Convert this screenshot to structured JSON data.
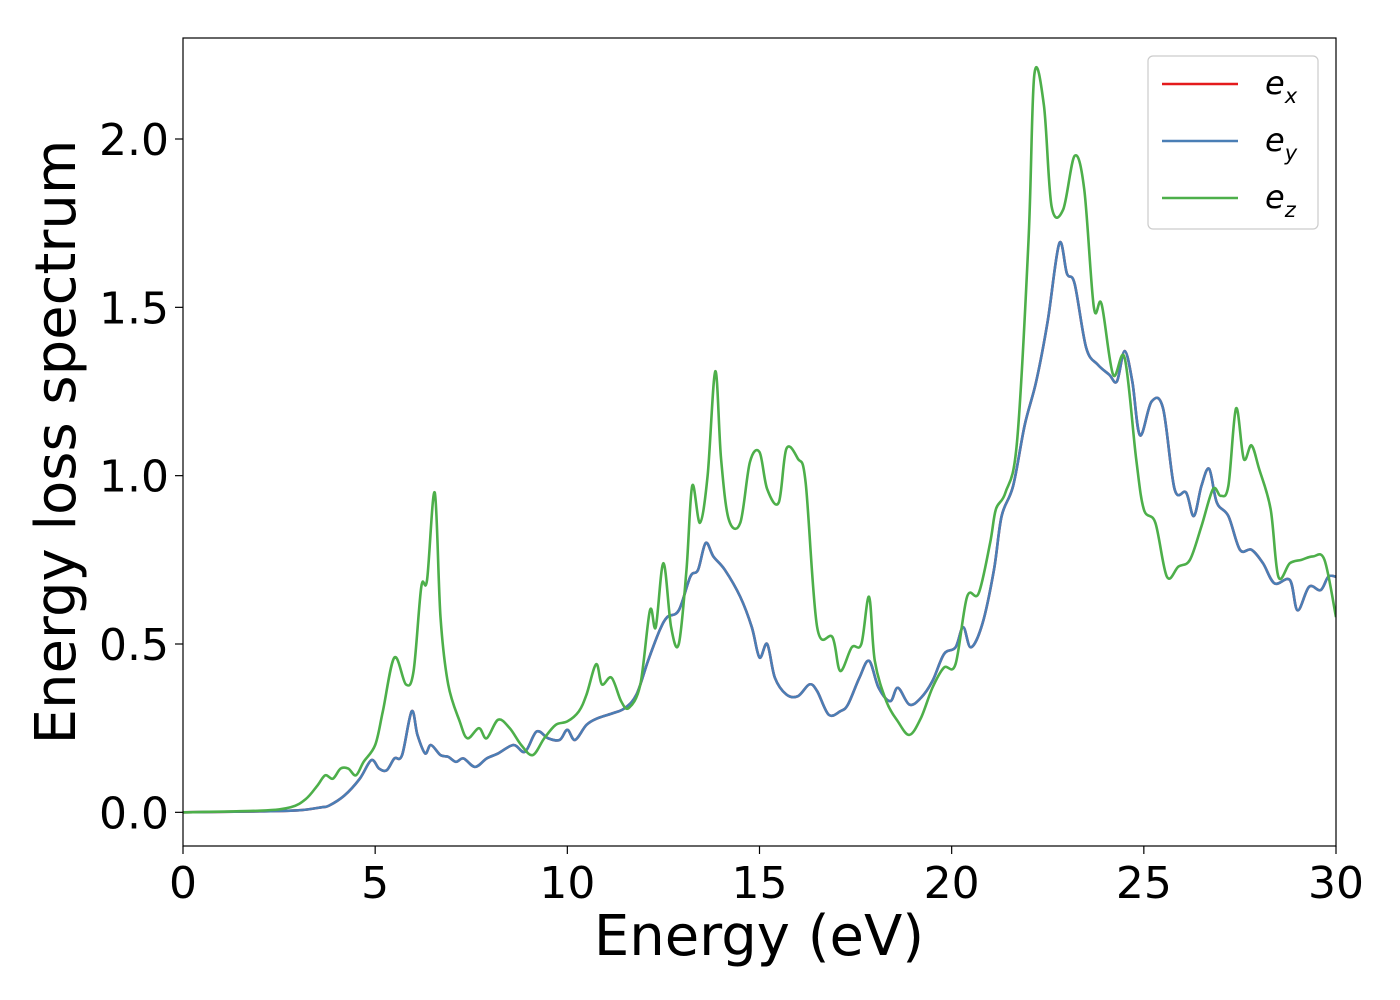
{
  "chart_data": {
    "type": "line",
    "title": "",
    "xlabel": "Energy (eV)",
    "ylabel": "Energy loss spectrum",
    "xlim": [
      0,
      30
    ],
    "ylim": [
      -0.1,
      2.3
    ],
    "xticks": [
      0,
      5,
      10,
      15,
      20,
      25,
      30
    ],
    "xtick_labels": [
      "0",
      "5",
      "10",
      "15",
      "20",
      "25",
      "30"
    ],
    "yticks": [
      0.0,
      0.5,
      1.0,
      1.5,
      2.0
    ],
    "ytick_labels": [
      "0.0",
      "0.5",
      "1.0",
      "1.5",
      "2.0"
    ],
    "grid": false,
    "legend_position": "top-right",
    "series": [
      {
        "name": "e_x",
        "label_main": "e",
        "label_sub": "x",
        "color": "#e41a1c",
        "same_as": "e_y",
        "points": []
      },
      {
        "name": "e_y",
        "label_main": "e",
        "label_sub": "y",
        "color": "#4a7eb5",
        "points": [
          [
            0,
            0.0
          ],
          [
            2,
            0.003
          ],
          [
            3,
            0.006
          ],
          [
            3.6,
            0.015
          ],
          [
            3.8,
            0.02
          ],
          [
            4.2,
            0.05
          ],
          [
            4.6,
            0.1
          ],
          [
            4.9,
            0.155
          ],
          [
            5.1,
            0.13
          ],
          [
            5.3,
            0.125
          ],
          [
            5.5,
            0.16
          ],
          [
            5.7,
            0.17
          ],
          [
            5.95,
            0.3
          ],
          [
            6.1,
            0.23
          ],
          [
            6.3,
            0.175
          ],
          [
            6.45,
            0.2
          ],
          [
            6.7,
            0.17
          ],
          [
            6.9,
            0.165
          ],
          [
            7.1,
            0.15
          ],
          [
            7.3,
            0.16
          ],
          [
            7.6,
            0.135
          ],
          [
            7.9,
            0.16
          ],
          [
            8.2,
            0.175
          ],
          [
            8.6,
            0.2
          ],
          [
            8.9,
            0.18
          ],
          [
            9.2,
            0.24
          ],
          [
            9.5,
            0.22
          ],
          [
            9.8,
            0.215
          ],
          [
            10.0,
            0.245
          ],
          [
            10.2,
            0.215
          ],
          [
            10.5,
            0.26
          ],
          [
            10.8,
            0.28
          ],
          [
            11.2,
            0.295
          ],
          [
            11.5,
            0.31
          ],
          [
            11.8,
            0.35
          ],
          [
            12.1,
            0.45
          ],
          [
            12.4,
            0.54
          ],
          [
            12.6,
            0.58
          ],
          [
            12.9,
            0.6
          ],
          [
            13.2,
            0.7
          ],
          [
            13.4,
            0.72
          ],
          [
            13.6,
            0.8
          ],
          [
            13.8,
            0.76
          ],
          [
            14.1,
            0.72
          ],
          [
            14.5,
            0.64
          ],
          [
            14.8,
            0.55
          ],
          [
            15.0,
            0.46
          ],
          [
            15.2,
            0.5
          ],
          [
            15.4,
            0.4
          ],
          [
            15.7,
            0.35
          ],
          [
            16.0,
            0.345
          ],
          [
            16.3,
            0.38
          ],
          [
            16.5,
            0.36
          ],
          [
            16.8,
            0.29
          ],
          [
            17.1,
            0.3
          ],
          [
            17.3,
            0.32
          ],
          [
            17.6,
            0.4
          ],
          [
            17.85,
            0.45
          ],
          [
            18.1,
            0.37
          ],
          [
            18.4,
            0.33
          ],
          [
            18.6,
            0.37
          ],
          [
            18.9,
            0.32
          ],
          [
            19.2,
            0.34
          ],
          [
            19.5,
            0.39
          ],
          [
            19.8,
            0.47
          ],
          [
            20.1,
            0.49
          ],
          [
            20.3,
            0.55
          ],
          [
            20.5,
            0.49
          ],
          [
            20.8,
            0.56
          ],
          [
            21.1,
            0.72
          ],
          [
            21.3,
            0.88
          ],
          [
            21.6,
            0.97
          ],
          [
            21.9,
            1.15
          ],
          [
            22.2,
            1.28
          ],
          [
            22.5,
            1.46
          ],
          [
            22.8,
            1.69
          ],
          [
            23.0,
            1.6
          ],
          [
            23.2,
            1.57
          ],
          [
            23.5,
            1.38
          ],
          [
            23.8,
            1.33
          ],
          [
            24.1,
            1.3
          ],
          [
            24.3,
            1.28
          ],
          [
            24.5,
            1.37
          ],
          [
            24.7,
            1.28
          ],
          [
            24.9,
            1.12
          ],
          [
            25.2,
            1.22
          ],
          [
            25.5,
            1.2
          ],
          [
            25.8,
            0.96
          ],
          [
            26.1,
            0.95
          ],
          [
            26.3,
            0.88
          ],
          [
            26.5,
            0.97
          ],
          [
            26.7,
            1.02
          ],
          [
            26.9,
            0.92
          ],
          [
            27.2,
            0.88
          ],
          [
            27.5,
            0.78
          ],
          [
            27.8,
            0.78
          ],
          [
            28.1,
            0.74
          ],
          [
            28.4,
            0.68
          ],
          [
            28.8,
            0.69
          ],
          [
            29.0,
            0.6
          ],
          [
            29.3,
            0.67
          ],
          [
            29.6,
            0.66
          ],
          [
            29.8,
            0.7
          ],
          [
            30.0,
            0.7
          ]
        ]
      },
      {
        "name": "e_z",
        "label_main": "e",
        "label_sub": "z",
        "color": "#4daf4a",
        "points": [
          [
            0,
            0.0
          ],
          [
            2,
            0.005
          ],
          [
            2.8,
            0.015
          ],
          [
            3.2,
            0.04
          ],
          [
            3.5,
            0.08
          ],
          [
            3.7,
            0.11
          ],
          [
            3.9,
            0.1
          ],
          [
            4.1,
            0.13
          ],
          [
            4.3,
            0.13
          ],
          [
            4.5,
            0.11
          ],
          [
            4.7,
            0.15
          ],
          [
            5.0,
            0.2
          ],
          [
            5.2,
            0.3
          ],
          [
            5.5,
            0.46
          ],
          [
            5.8,
            0.38
          ],
          [
            6.0,
            0.42
          ],
          [
            6.2,
            0.67
          ],
          [
            6.35,
            0.69
          ],
          [
            6.55,
            0.95
          ],
          [
            6.7,
            0.58
          ],
          [
            6.9,
            0.38
          ],
          [
            7.2,
            0.27
          ],
          [
            7.4,
            0.22
          ],
          [
            7.7,
            0.25
          ],
          [
            7.9,
            0.22
          ],
          [
            8.2,
            0.275
          ],
          [
            8.5,
            0.25
          ],
          [
            8.8,
            0.2
          ],
          [
            9.1,
            0.17
          ],
          [
            9.4,
            0.22
          ],
          [
            9.7,
            0.26
          ],
          [
            10.0,
            0.27
          ],
          [
            10.3,
            0.3
          ],
          [
            10.5,
            0.35
          ],
          [
            10.75,
            0.44
          ],
          [
            10.9,
            0.38
          ],
          [
            11.15,
            0.4
          ],
          [
            11.4,
            0.33
          ],
          [
            11.6,
            0.31
          ],
          [
            11.9,
            0.38
          ],
          [
            12.15,
            0.6
          ],
          [
            12.3,
            0.55
          ],
          [
            12.5,
            0.74
          ],
          [
            12.7,
            0.55
          ],
          [
            12.9,
            0.5
          ],
          [
            13.1,
            0.72
          ],
          [
            13.25,
            0.97
          ],
          [
            13.45,
            0.86
          ],
          [
            13.65,
            1.0
          ],
          [
            13.85,
            1.31
          ],
          [
            14.0,
            1.05
          ],
          [
            14.2,
            0.87
          ],
          [
            14.5,
            0.86
          ],
          [
            14.75,
            1.04
          ],
          [
            15.0,
            1.07
          ],
          [
            15.2,
            0.96
          ],
          [
            15.5,
            0.92
          ],
          [
            15.7,
            1.08
          ],
          [
            16.0,
            1.05
          ],
          [
            16.2,
            0.98
          ],
          [
            16.5,
            0.55
          ],
          [
            16.9,
            0.52
          ],
          [
            17.1,
            0.42
          ],
          [
            17.4,
            0.49
          ],
          [
            17.65,
            0.5
          ],
          [
            17.85,
            0.64
          ],
          [
            18.0,
            0.45
          ],
          [
            18.3,
            0.33
          ],
          [
            18.6,
            0.27
          ],
          [
            18.9,
            0.23
          ],
          [
            19.2,
            0.28
          ],
          [
            19.5,
            0.37
          ],
          [
            19.8,
            0.43
          ],
          [
            20.1,
            0.44
          ],
          [
            20.4,
            0.64
          ],
          [
            20.7,
            0.65
          ],
          [
            21.0,
            0.8
          ],
          [
            21.15,
            0.9
          ],
          [
            21.4,
            0.95
          ],
          [
            21.7,
            1.1
          ],
          [
            22.0,
            1.7
          ],
          [
            22.15,
            2.19
          ],
          [
            22.4,
            2.1
          ],
          [
            22.6,
            1.8
          ],
          [
            22.9,
            1.79
          ],
          [
            23.2,
            1.95
          ],
          [
            23.45,
            1.85
          ],
          [
            23.7,
            1.5
          ],
          [
            23.9,
            1.51
          ],
          [
            24.2,
            1.3
          ],
          [
            24.5,
            1.35
          ],
          [
            24.8,
            1.05
          ],
          [
            25.0,
            0.9
          ],
          [
            25.3,
            0.86
          ],
          [
            25.6,
            0.7
          ],
          [
            25.9,
            0.73
          ],
          [
            26.2,
            0.75
          ],
          [
            26.5,
            0.85
          ],
          [
            26.8,
            0.96
          ],
          [
            27.0,
            0.94
          ],
          [
            27.2,
            0.97
          ],
          [
            27.4,
            1.2
          ],
          [
            27.6,
            1.05
          ],
          [
            27.8,
            1.09
          ],
          [
            28.0,
            1.02
          ],
          [
            28.3,
            0.9
          ],
          [
            28.5,
            0.7
          ],
          [
            28.8,
            0.74
          ],
          [
            29.1,
            0.75
          ],
          [
            29.4,
            0.76
          ],
          [
            29.7,
            0.75
          ],
          [
            30.0,
            0.58
          ]
        ]
      }
    ]
  }
}
